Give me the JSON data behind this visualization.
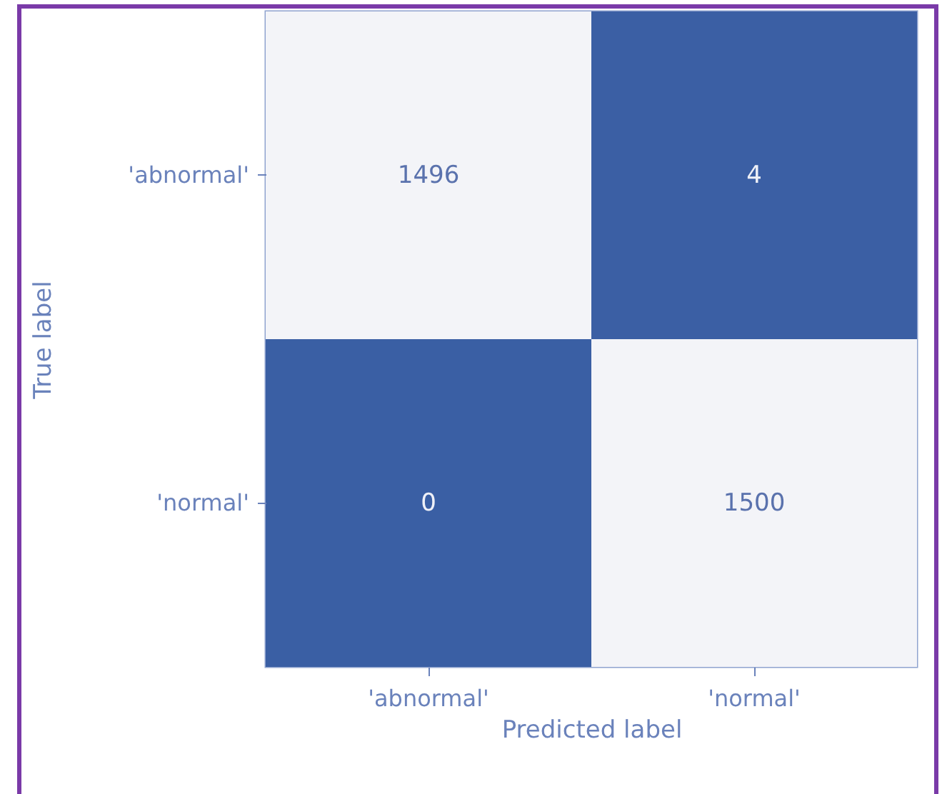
{
  "chart_data": {
    "type": "heatmap",
    "xlabel": "Predicted label",
    "ylabel": "True label",
    "categories": [
      "'abnormal'",
      "'normal'"
    ],
    "y_categories": [
      "'abnormal'",
      "'normal'"
    ],
    "cells": [
      [
        1496,
        4
      ],
      [
        0,
        1500
      ]
    ],
    "data_labels": true
  }
}
